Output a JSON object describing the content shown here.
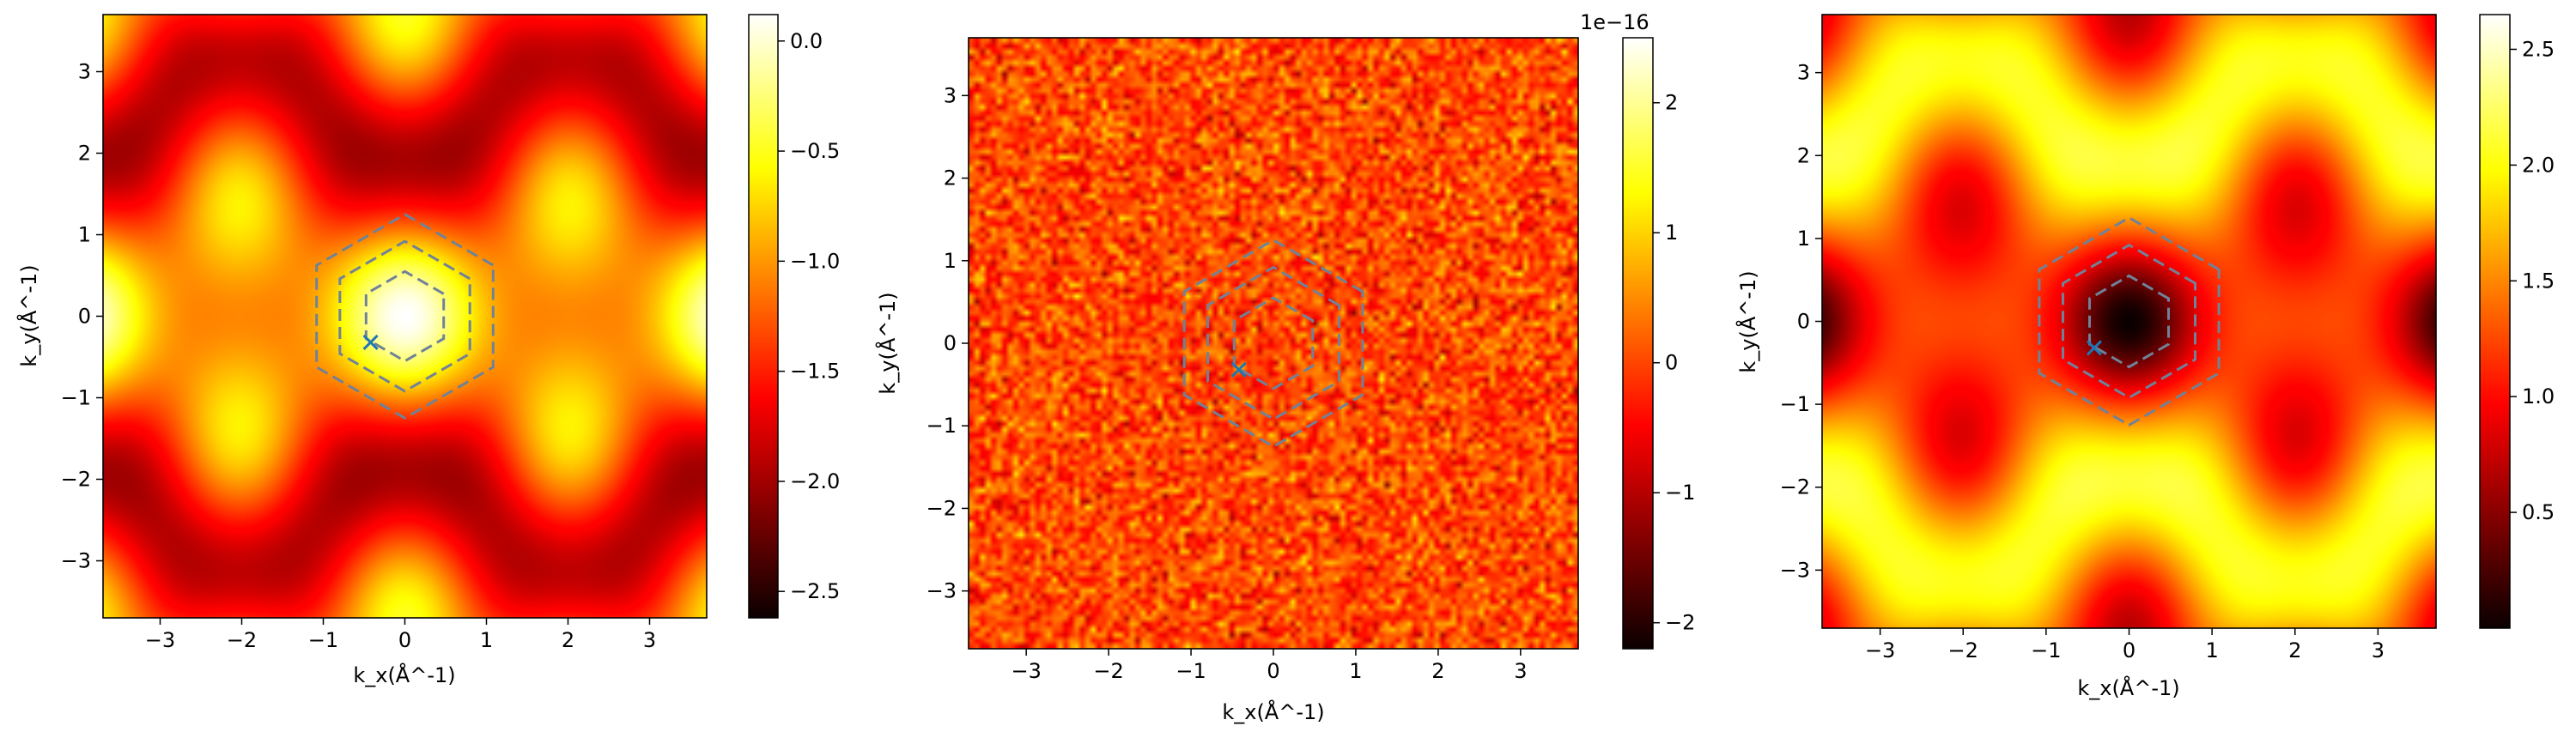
{
  "chart_data": [
    {
      "type": "heatmap",
      "title": "",
      "xlabel": "k_x(Å^-1)",
      "ylabel": "k_y(Å^-1)",
      "xlim": [
        -3.7,
        3.7
      ],
      "ylim": [
        -3.7,
        3.7
      ],
      "xticks": [
        "−3",
        "−2",
        "−1",
        "0",
        "1",
        "2",
        "3"
      ],
      "yticks": [
        "−3",
        "−2",
        "−1",
        "0",
        "1",
        "2",
        "3"
      ],
      "colormap": "hot",
      "colorbar": {
        "range": [
          -2.62,
          0.12
        ],
        "ticks": [
          0.0,
          -0.5,
          -1.0,
          -1.5,
          -2.0,
          -2.5
        ],
        "tick_labels": [
          "0.0",
          "−0.5",
          "−1.0",
          "−1.5",
          "−2.0",
          "−2.5"
        ],
        "offset": ""
      },
      "pattern": "bright",
      "marker": {
        "symbol": "x",
        "x": -0.42,
        "y": -0.32
      },
      "hexagon_radii": [
        0.55,
        0.92,
        1.25
      ]
    },
    {
      "type": "heatmap",
      "title": "",
      "xlabel": "k_x(Å^-1)",
      "ylabel": "k_y(Å^-1)",
      "xlim": [
        -3.7,
        3.7
      ],
      "ylim": [
        -3.7,
        3.7
      ],
      "xticks": [
        "−3",
        "−2",
        "−1",
        "0",
        "1",
        "2",
        "3"
      ],
      "yticks": [
        "−3",
        "−2",
        "−1",
        "0",
        "1",
        "2",
        "3"
      ],
      "colormap": "hot",
      "colorbar": {
        "range": [
          -2.2,
          2.5
        ],
        "ticks": [
          2,
          1,
          0,
          -1,
          -2
        ],
        "tick_labels": [
          "2",
          "1",
          "0",
          "−1",
          "−2"
        ],
        "offset": "1e−16"
      },
      "pattern": "noise",
      "marker": {
        "symbol": "x",
        "x": -0.42,
        "y": -0.32
      },
      "hexagon_radii": [
        0.55,
        0.92,
        1.25
      ]
    },
    {
      "type": "heatmap",
      "title": "",
      "xlabel": "k_x(Å^-1)",
      "ylabel": "k_y(Å^-1)",
      "xlim": [
        -3.7,
        3.7
      ],
      "ylim": [
        -3.7,
        3.7
      ],
      "xticks": [
        "−3",
        "−2",
        "−1",
        "0",
        "1",
        "2",
        "3"
      ],
      "yticks": [
        "−3",
        "−2",
        "−1",
        "0",
        "1",
        "2",
        "3"
      ],
      "colormap": "hot",
      "colorbar": {
        "range": [
          0.0,
          2.65
        ],
        "ticks": [
          2.5,
          2.0,
          1.5,
          1.0,
          0.5
        ],
        "tick_labels": [
          "2.5",
          "2.0",
          "1.5",
          "1.0",
          "0.5"
        ],
        "offset": ""
      },
      "pattern": "dark",
      "marker": {
        "symbol": "x",
        "x": -0.42,
        "y": -0.32
      },
      "hexagon_radii": [
        0.55,
        0.92,
        1.25
      ]
    }
  ]
}
